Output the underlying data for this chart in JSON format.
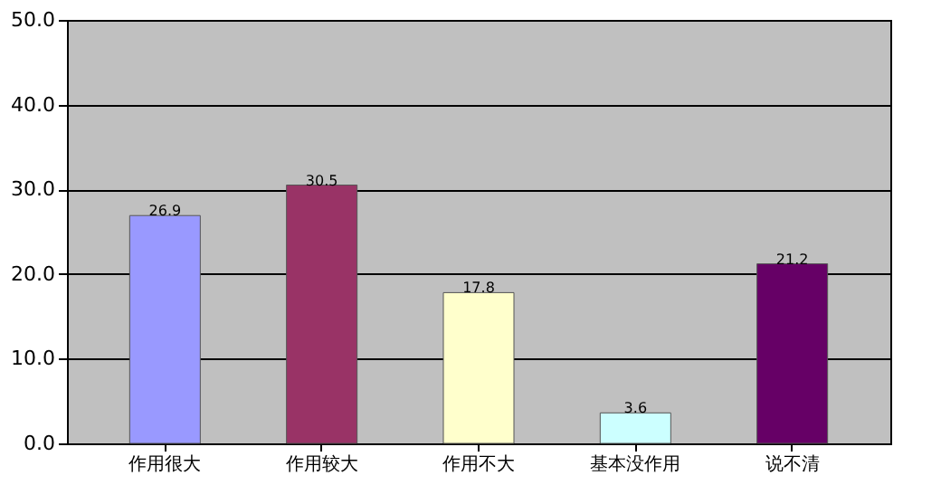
{
  "chart_data": {
    "type": "bar",
    "categories": [
      "作用很大",
      "作用较大",
      "作用不大",
      "基本没作用",
      "说不清"
    ],
    "values": [
      26.9,
      30.5,
      17.8,
      3.6,
      21.2
    ],
    "colors": [
      "#9999ff",
      "#993366",
      "#ffffcc",
      "#ccffff",
      "#660066"
    ],
    "ylim": [
      0,
      50
    ],
    "yticks": [
      {
        "value": 0,
        "label": "0.0"
      },
      {
        "value": 10,
        "label": "10.0"
      },
      {
        "value": 20,
        "label": "20.0"
      },
      {
        "value": 30,
        "label": "30.0"
      },
      {
        "value": 40,
        "label": "40.0"
      },
      {
        "value": 50,
        "label": "50.0"
      }
    ],
    "grid": "y",
    "data_labels": true
  }
}
